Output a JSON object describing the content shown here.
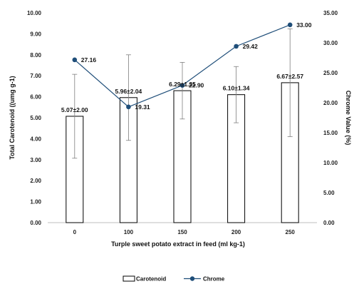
{
  "chart_data": {
    "type": "bar",
    "categories": [
      "0",
      "100",
      "150",
      "200",
      "250"
    ],
    "xlabel": "Turple sweet potato extract in feed (ml kg-1)",
    "ylabel": "Total Carotenoid ((umg g-1)",
    "y2label": "Chrome Value (%)",
    "ylim": [
      0,
      10
    ],
    "y2lim": [
      0,
      35
    ],
    "yticks": [
      "0.00",
      "1.00",
      "2.00",
      "3.00",
      "4.00",
      "5.00",
      "6.00",
      "7.00",
      "8.00",
      "9.00",
      "10.00"
    ],
    "y2ticks": [
      "0.00",
      "5.00",
      "10.00",
      "15.00",
      "20.00",
      "25.00",
      "30.00",
      "35.00"
    ],
    "grid": false,
    "legend_position": "bottom",
    "series": [
      {
        "name": "Carotenoid",
        "kind": "bar",
        "axis": "left",
        "values": [
          5.07,
          5.96,
          6.29,
          6.1,
          6.67
        ],
        "errors": [
          2.0,
          2.04,
          1.35,
          1.34,
          2.57
        ],
        "labels": [
          "5.07±2.00",
          "5.96±2.04",
          "6.29±1.35",
          "6.10±1.34",
          "6.67±2.57"
        ]
      },
      {
        "name": "Chrome",
        "kind": "line",
        "axis": "right",
        "values": [
          27.16,
          19.31,
          22.9,
          29.42,
          33.0
        ],
        "labels": [
          "27.16",
          "19.31",
          "22.90",
          "29.42",
          "33.00"
        ]
      }
    ],
    "colors": {
      "bar_fill": "#ffffff",
      "bar_stroke": "#000000",
      "line": "#1f4e79",
      "marker": "#1f4e79",
      "error_bar": "#7f7f7f",
      "axis": "#bfbfbf"
    }
  }
}
